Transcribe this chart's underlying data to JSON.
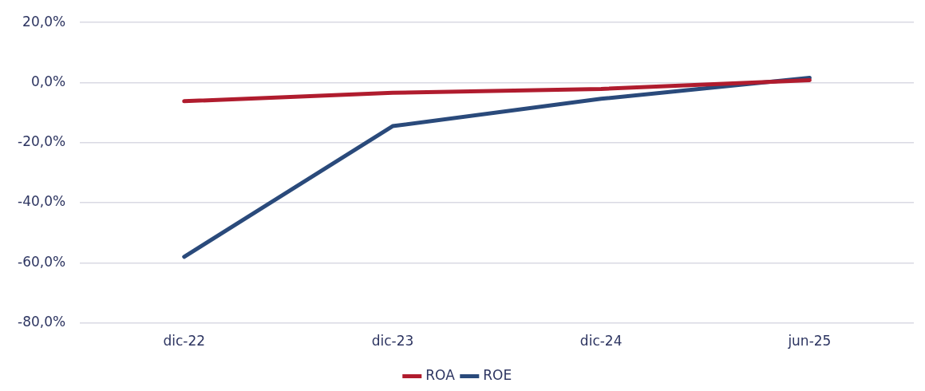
{
  "chart_data": {
    "type": "line",
    "categories": [
      "dic-22",
      "dic-23",
      "dic-24",
      "jun-25"
    ],
    "series": [
      {
        "name": "ROA",
        "color": "#b01c2e",
        "values": [
          -6.2,
          -3.4,
          -2.1,
          0.8
        ]
      },
      {
        "name": "ROE",
        "color": "#2a4a7b",
        "values": [
          -58.0,
          -14.5,
          -5.4,
          1.6
        ]
      }
    ],
    "ylim": [
      -80,
      20
    ],
    "yticks": [
      {
        "value": -80,
        "label": "-80,0%"
      },
      {
        "value": -60,
        "label": "-60,0%"
      },
      {
        "value": -40,
        "label": "-40,0%"
      },
      {
        "value": -20,
        "label": "-20,0%"
      },
      {
        "value": 0,
        "label": "0,0%"
      },
      {
        "value": 20,
        "label": "20,0%"
      }
    ],
    "grid": "y",
    "legend": "bottom",
    "marker": "none",
    "line_style": "solid"
  }
}
